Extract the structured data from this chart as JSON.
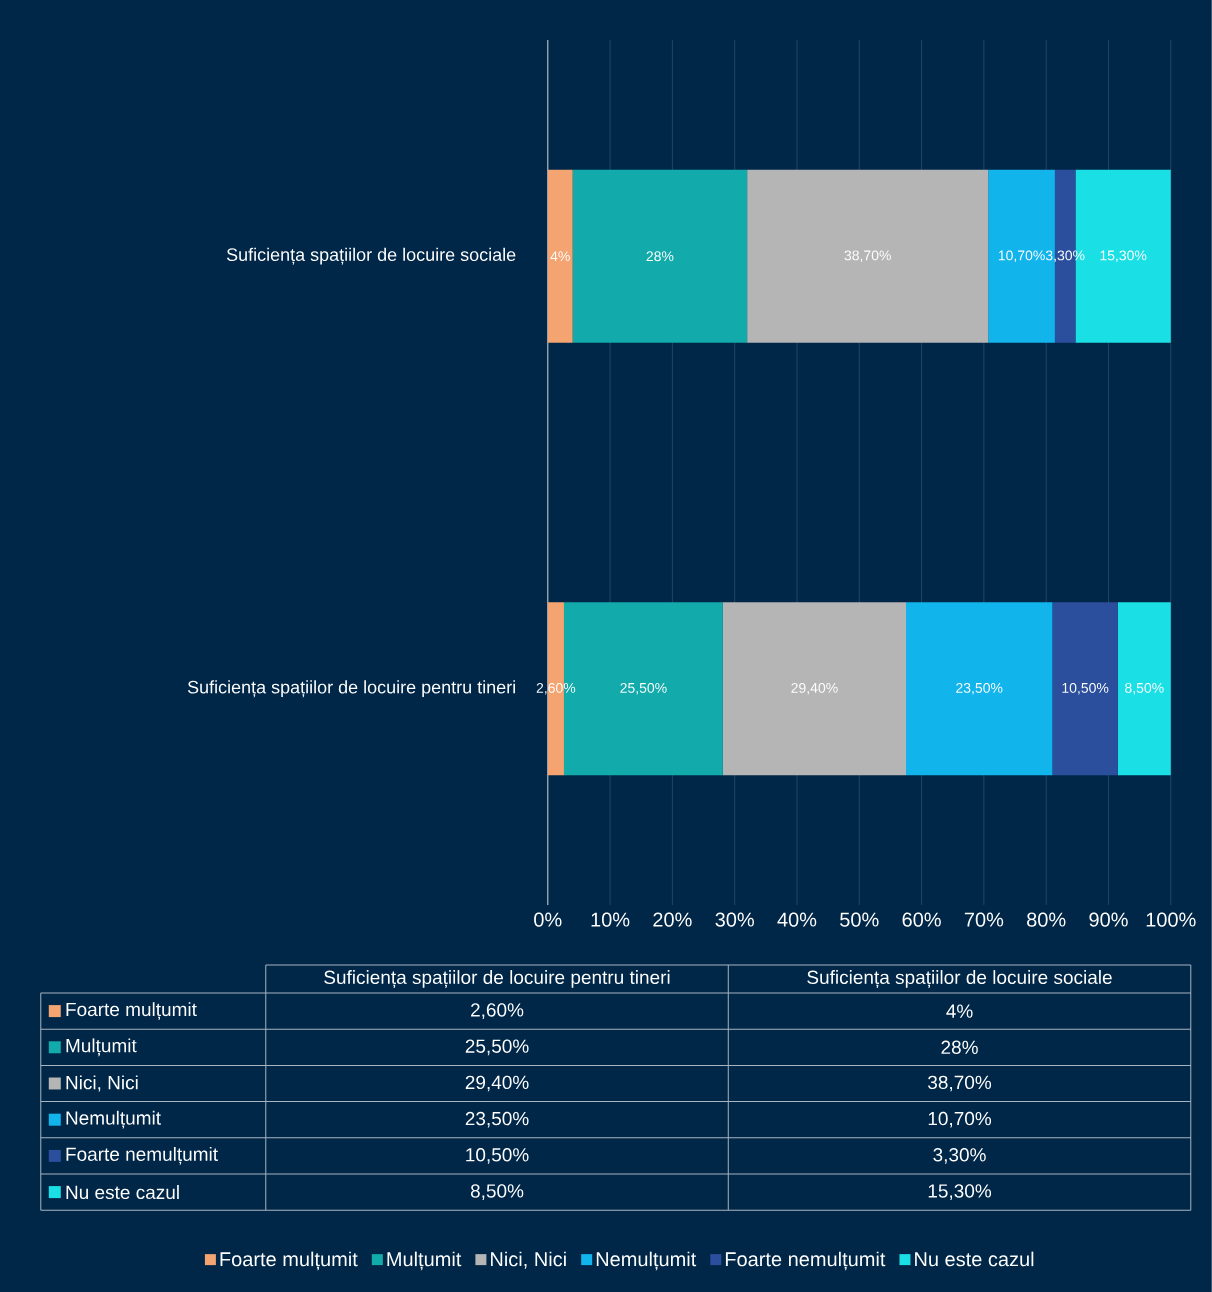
{
  "chart_data": {
    "type": "bar",
    "orientation": "horizontal",
    "stacked": true,
    "categories": [
      "Suficiența spațiilor de locuire sociale",
      "Suficiența spațiilor de locuire pentru tineri"
    ],
    "series": [
      {
        "name": "Foarte mulțumit",
        "color": "#f4a471",
        "values": [
          4,
          2.6
        ],
        "value_labels": [
          "4%",
          "2,60%"
        ]
      },
      {
        "name": "Mulțumit",
        "color": "#12aaaa",
        "values": [
          28,
          25.5
        ],
        "value_labels": [
          "28%",
          "25,50%"
        ]
      },
      {
        "name": "Nici, Nici",
        "color": "#b5b5b5",
        "values": [
          38.7,
          29.4
        ],
        "value_labels": [
          "38,70%",
          "29,40%"
        ]
      },
      {
        "name": "Nemulțumit",
        "color": "#12b4ec",
        "values": [
          10.7,
          23.5
        ],
        "value_labels": [
          "10,70%",
          "23,50%"
        ]
      },
      {
        "name": "Foarte nemulțumit",
        "color": "#2b4f9c",
        "values": [
          3.3,
          10.5
        ],
        "value_labels": [
          "3,30%",
          "10,50%"
        ]
      },
      {
        "name": "Nu este cazul",
        "color": "#1ae0e6",
        "values": [
          15.3,
          8.5
        ],
        "value_labels": [
          "15,30%",
          "8,50%"
        ]
      }
    ],
    "xlim": [
      0,
      100
    ],
    "xticks": [
      {
        "value": 0,
        "label": "0%"
      },
      {
        "value": 10,
        "label": "10%"
      },
      {
        "value": 20,
        "label": "20%"
      },
      {
        "value": 30,
        "label": "30%"
      },
      {
        "value": 40,
        "label": "40%"
      },
      {
        "value": 50,
        "label": "50%"
      },
      {
        "value": 60,
        "label": "60%"
      },
      {
        "value": 70,
        "label": "70%"
      },
      {
        "value": 80,
        "label": "80%"
      },
      {
        "value": 90,
        "label": "90%"
      },
      {
        "value": 100,
        "label": "100%"
      }
    ],
    "grid": "x",
    "legend": "bottom"
  }
}
